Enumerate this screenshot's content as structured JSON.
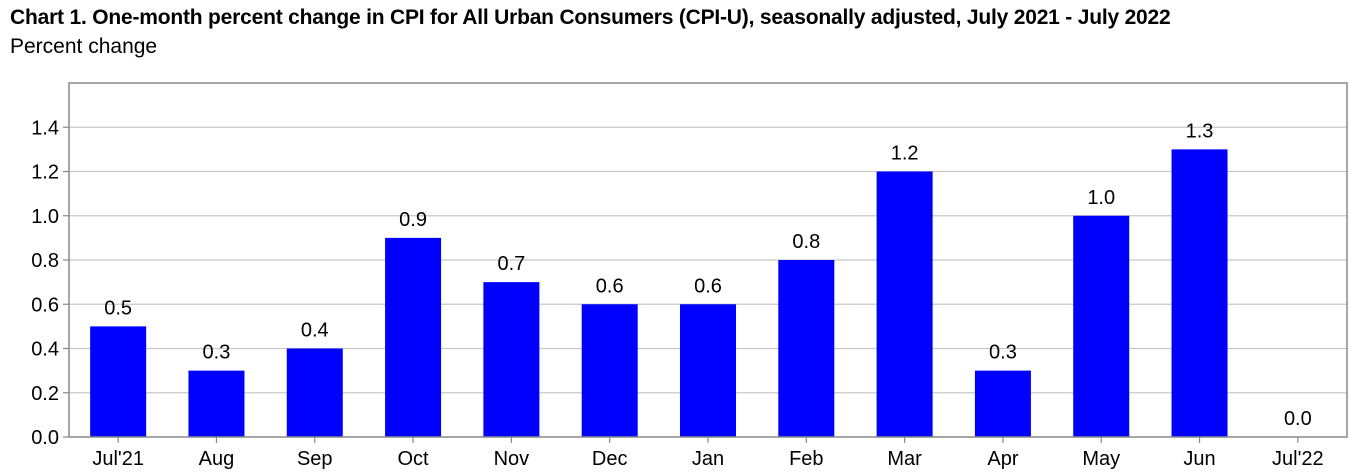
{
  "chart_data": {
    "type": "bar",
    "title": "Chart 1. One-month percent change in CPI for All Urban Consumers (CPI-U), seasonally adjusted, July 2021 - July 2022",
    "subtitle": "Percent change",
    "categories": [
      "Jul'21",
      "Aug",
      "Sep",
      "Oct",
      "Nov",
      "Dec",
      "Jan",
      "Feb",
      "Mar",
      "Apr",
      "May",
      "Jun",
      "Jul'22"
    ],
    "values": [
      0.5,
      0.3,
      0.4,
      0.9,
      0.7,
      0.6,
      0.6,
      0.8,
      1.2,
      0.3,
      1.0,
      1.3,
      0.0
    ],
    "value_labels": [
      "0.5",
      "0.3",
      "0.4",
      "0.9",
      "0.7",
      "0.6",
      "0.6",
      "0.8",
      "1.2",
      "0.3",
      "1.0",
      "1.3",
      "0.0"
    ],
    "yticks": [
      "0.0",
      "0.2",
      "0.4",
      "0.6",
      "0.8",
      "1.0",
      "1.2",
      "1.4"
    ],
    "ylim": [
      0,
      1.6
    ],
    "grid": true,
    "bar_color": "#0000ff"
  }
}
